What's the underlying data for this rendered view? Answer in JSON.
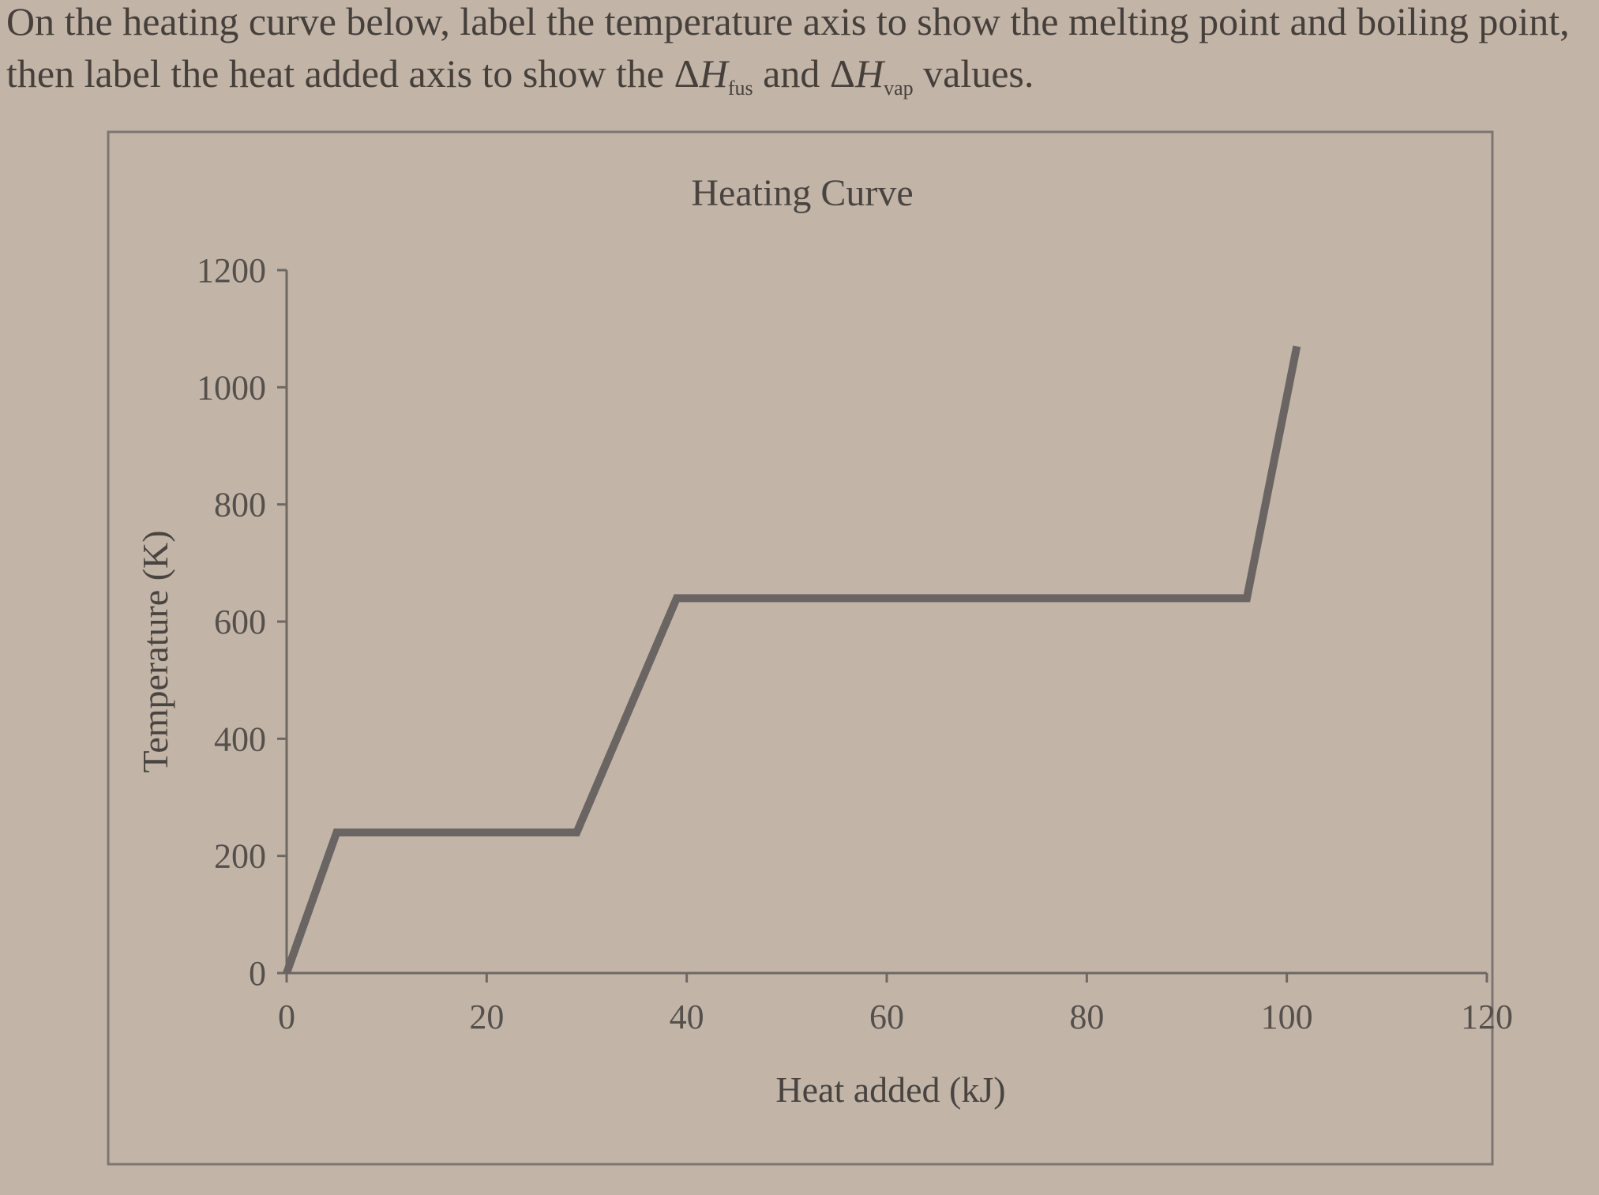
{
  "question": {
    "text_before": "On the heating curve below, label the temperature axis to show the melting point and boiling point, then label the heat added axis to show the ",
    "delta_symbol": "Δ",
    "H_symbol": "H",
    "fus_sub": "fus",
    "and_word": " and ",
    "vap_sub": "vap",
    "text_after": " values."
  },
  "colors": {
    "background": "#c2b5a8",
    "curve": "#6a6562",
    "axis": "#6e6863",
    "frame": "#7d7570"
  },
  "chart_data": {
    "type": "line",
    "title": "Heating Curve",
    "xlabel": "Heat added (kJ)",
    "ylabel": "Temperature (K)",
    "xlim": [
      0,
      120
    ],
    "ylim": [
      0,
      1200
    ],
    "x_ticks": [
      "0",
      "20",
      "40",
      "60",
      "80",
      "100",
      "120"
    ],
    "y_ticks": [
      "0",
      "200",
      "400",
      "600",
      "800",
      "1000",
      "1200"
    ],
    "grid": false,
    "legend": "none",
    "series": [
      {
        "x": [
          0,
          5,
          29,
          39,
          96,
          101
        ],
        "y": [
          0,
          240,
          240,
          640,
          640,
          1070
        ]
      }
    ]
  }
}
